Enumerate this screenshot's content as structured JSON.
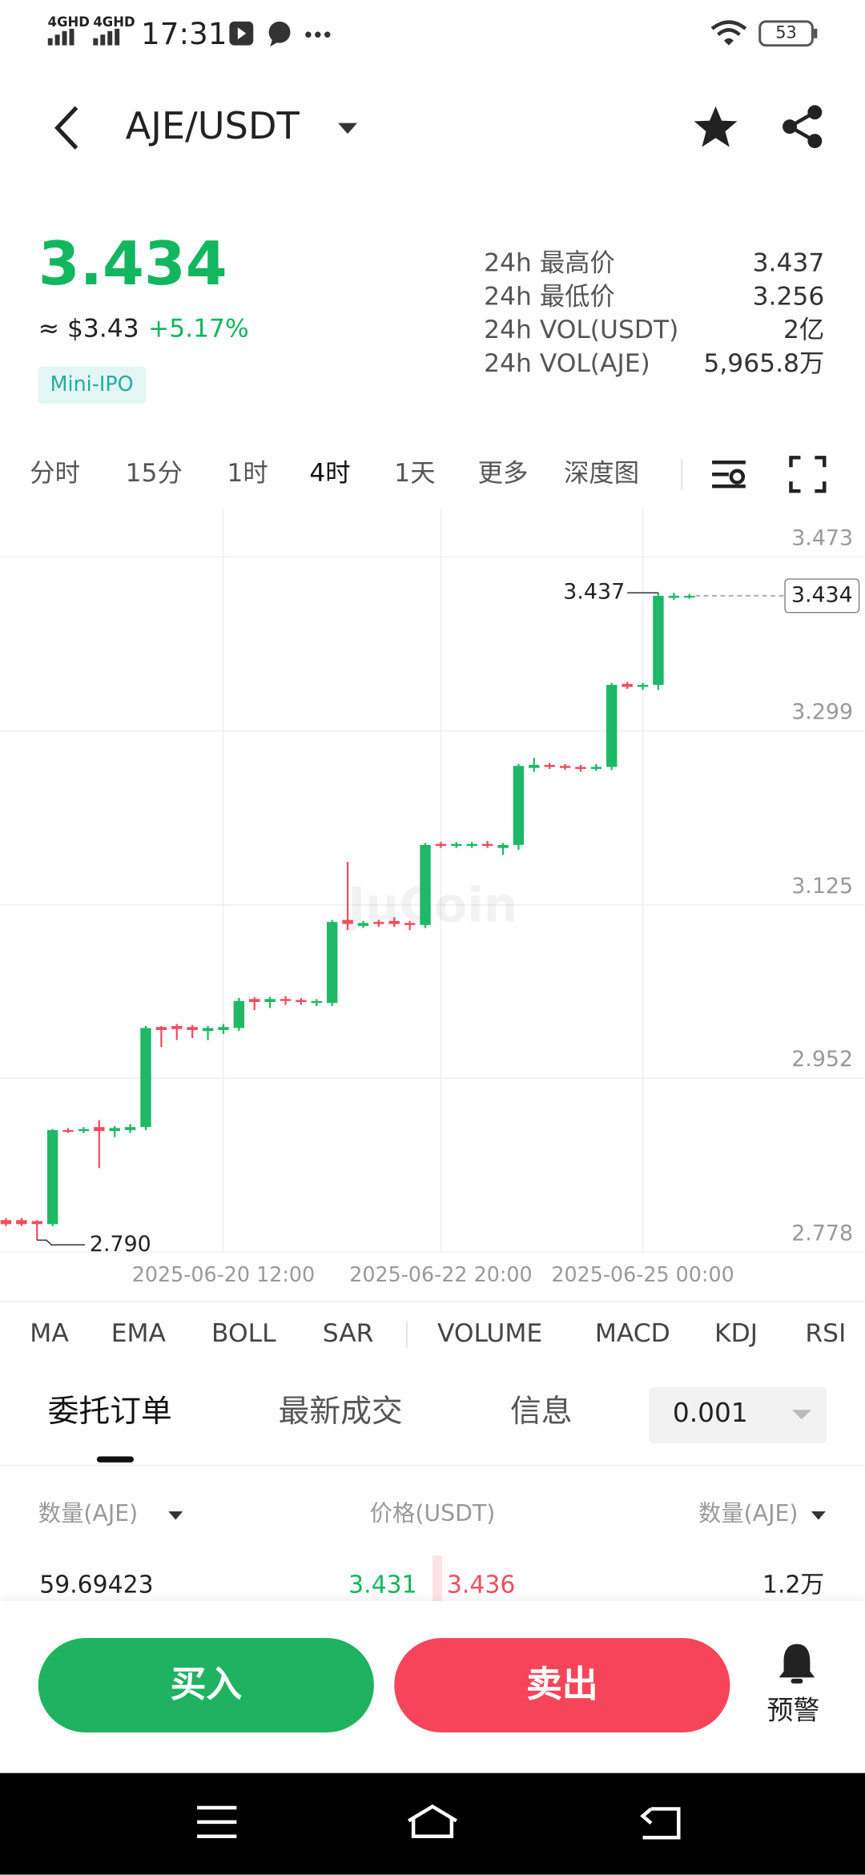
{
  "status_bar": {
    "network": [
      "4GHD",
      "4GHD"
    ],
    "time": "17:31",
    "battery": "53"
  },
  "header": {
    "pair": "AJE/USDT"
  },
  "ticker": {
    "price": "3.434",
    "fiat": "≈ $3.43",
    "change": "+5.17%",
    "tag": "Mini-IPO",
    "stats": [
      {
        "label": "24h 最高价",
        "value": "3.437"
      },
      {
        "label": "24h 最低价",
        "value": "3.256"
      },
      {
        "label": "24h VOL(USDT)",
        "value": "2亿"
      },
      {
        "label": "24h VOL(AJE)",
        "value": "5,965.8万"
      }
    ]
  },
  "timeframes": [
    "分时",
    "15分",
    "1时",
    "4时",
    "1天",
    "更多",
    "深度图"
  ],
  "chart_data": {
    "type": "candlestick",
    "x": [
      "2025-06-18 04:00",
      "2025-06-18 08:00",
      "2025-06-18 12:00",
      "2025-06-18 16:00",
      "2025-06-18 20:00",
      "2025-06-19 00:00",
      "2025-06-19 04:00",
      "2025-06-19 08:00",
      "2025-06-19 12:00",
      "2025-06-19 16:00",
      "2025-06-19 20:00",
      "2025-06-20 00:00",
      "2025-06-20 04:00",
      "2025-06-20 08:00",
      "2025-06-20 12:00",
      "2025-06-20 16:00",
      "2025-06-20 20:00",
      "2025-06-21 00:00",
      "2025-06-21 04:00",
      "2025-06-21 08:00",
      "2025-06-21 12:00",
      "2025-06-21 16:00",
      "2025-06-21 20:00",
      "2025-06-22 00:00",
      "2025-06-22 04:00",
      "2025-06-22 08:00",
      "2025-06-22 12:00",
      "2025-06-22 16:00",
      "2025-06-22 20:00",
      "2025-06-23 00:00",
      "2025-06-23 04:00",
      "2025-06-23 08:00",
      "2025-06-23 12:00",
      "2025-06-23 16:00",
      "2025-06-23 20:00",
      "2025-06-24 00:00",
      "2025-06-24 04:00",
      "2025-06-24 08:00",
      "2025-06-24 12:00",
      "2025-06-24 16:00",
      "2025-06-24 20:00",
      "2025-06-25 00:00",
      "2025-06-25 04:00",
      "2025-06-25 08:00",
      "2025-06-25 12:00"
    ],
    "open": [
      2.81,
      2.81,
      2.809,
      2.806,
      2.9,
      2.899,
      2.903,
      2.899,
      2.9,
      2.903,
      3.003,
      3.004,
      3.003,
      2.999,
      3.0,
      3.002,
      3.031,
      3.028,
      3.031,
      3.03,
      3.027,
      3.027,
      3.11,
      3.104,
      3.108,
      3.109,
      3.107,
      3.105,
      3.186,
      3.184,
      3.184,
      3.186,
      3.182,
      3.185,
      3.262,
      3.265,
      3.264,
      3.263,
      3.261,
      3.263,
      3.346,
      3.343,
      3.345,
      3.432,
      3.433
    ],
    "high": [
      2.812,
      2.812,
      2.81,
      2.901,
      2.902,
      2.903,
      2.91,
      2.904,
      2.906,
      3.004,
      3.004,
      3.006,
      3.005,
      3.004,
      3.006,
      3.032,
      3.033,
      3.033,
      3.034,
      3.032,
      3.031,
      3.11,
      3.168,
      3.109,
      3.11,
      3.113,
      3.109,
      3.187,
      3.188,
      3.188,
      3.188,
      3.189,
      3.187,
      3.266,
      3.272,
      3.267,
      3.266,
      3.265,
      3.266,
      3.347,
      3.348,
      3.347,
      3.437,
      3.437,
      3.436
    ],
    "low": [
      2.804,
      2.804,
      2.79,
      2.804,
      2.897,
      2.897,
      2.862,
      2.893,
      2.897,
      2.9,
      2.983,
      2.99,
      2.992,
      2.99,
      2.996,
      2.999,
      3.02,
      3.022,
      3.025,
      3.025,
      3.024,
      3.024,
      3.1,
      3.102,
      3.103,
      3.103,
      3.1,
      3.102,
      3.182,
      3.182,
      3.182,
      3.182,
      3.175,
      3.18,
      3.258,
      3.261,
      3.26,
      3.258,
      3.259,
      3.26,
      3.341,
      3.34,
      3.34,
      3.43,
      3.431
    ],
    "close": [
      2.806,
      2.806,
      2.806,
      2.9,
      2.899,
      2.901,
      2.899,
      2.902,
      2.903,
      3.002,
      3.0,
      3.001,
      3.0,
      3.002,
      3.003,
      3.029,
      3.028,
      3.031,
      3.029,
      3.028,
      3.029,
      3.108,
      3.106,
      3.107,
      3.106,
      3.106,
      3.105,
      3.185,
      3.184,
      3.186,
      3.186,
      3.184,
      3.185,
      3.264,
      3.265,
      3.263,
      3.262,
      3.261,
      3.263,
      3.345,
      3.343,
      3.345,
      3.434,
      3.434,
      3.434
    ],
    "up_color": "#1fb866",
    "down_color": "#ef4d61",
    "ylim": [
      2.778,
      3.522
    ],
    "yticks": [
      2.778,
      2.952,
      3.125,
      3.299,
      3.473
    ],
    "xticks": [
      "2025-06-20 12:00",
      "2025-06-22 20:00",
      "2025-06-25 00:00"
    ],
    "grid": true,
    "max_label": 3.437,
    "min_label": {
      "value": 2.79,
      "label": "2.790"
    },
    "last_price": 3.434,
    "watermark": "JuCoin"
  },
  "indicators": [
    "MA",
    "EMA",
    "BOLL",
    "SAR",
    "VOLUME",
    "MACD",
    "KDJ",
    "RSI"
  ],
  "order_tabs": [
    "委托订单",
    "最新成交",
    "信息"
  ],
  "precision": "0.001",
  "order_book": {
    "headers": [
      "数量(AJE)",
      "价格(USDT)",
      "数量(AJE)"
    ],
    "rows": [
      [
        "59.69423",
        "3.431",
        "3.436",
        "1.2万"
      ]
    ]
  },
  "actions": {
    "buy": "买入",
    "sell": "卖出",
    "alert": "预警"
  }
}
